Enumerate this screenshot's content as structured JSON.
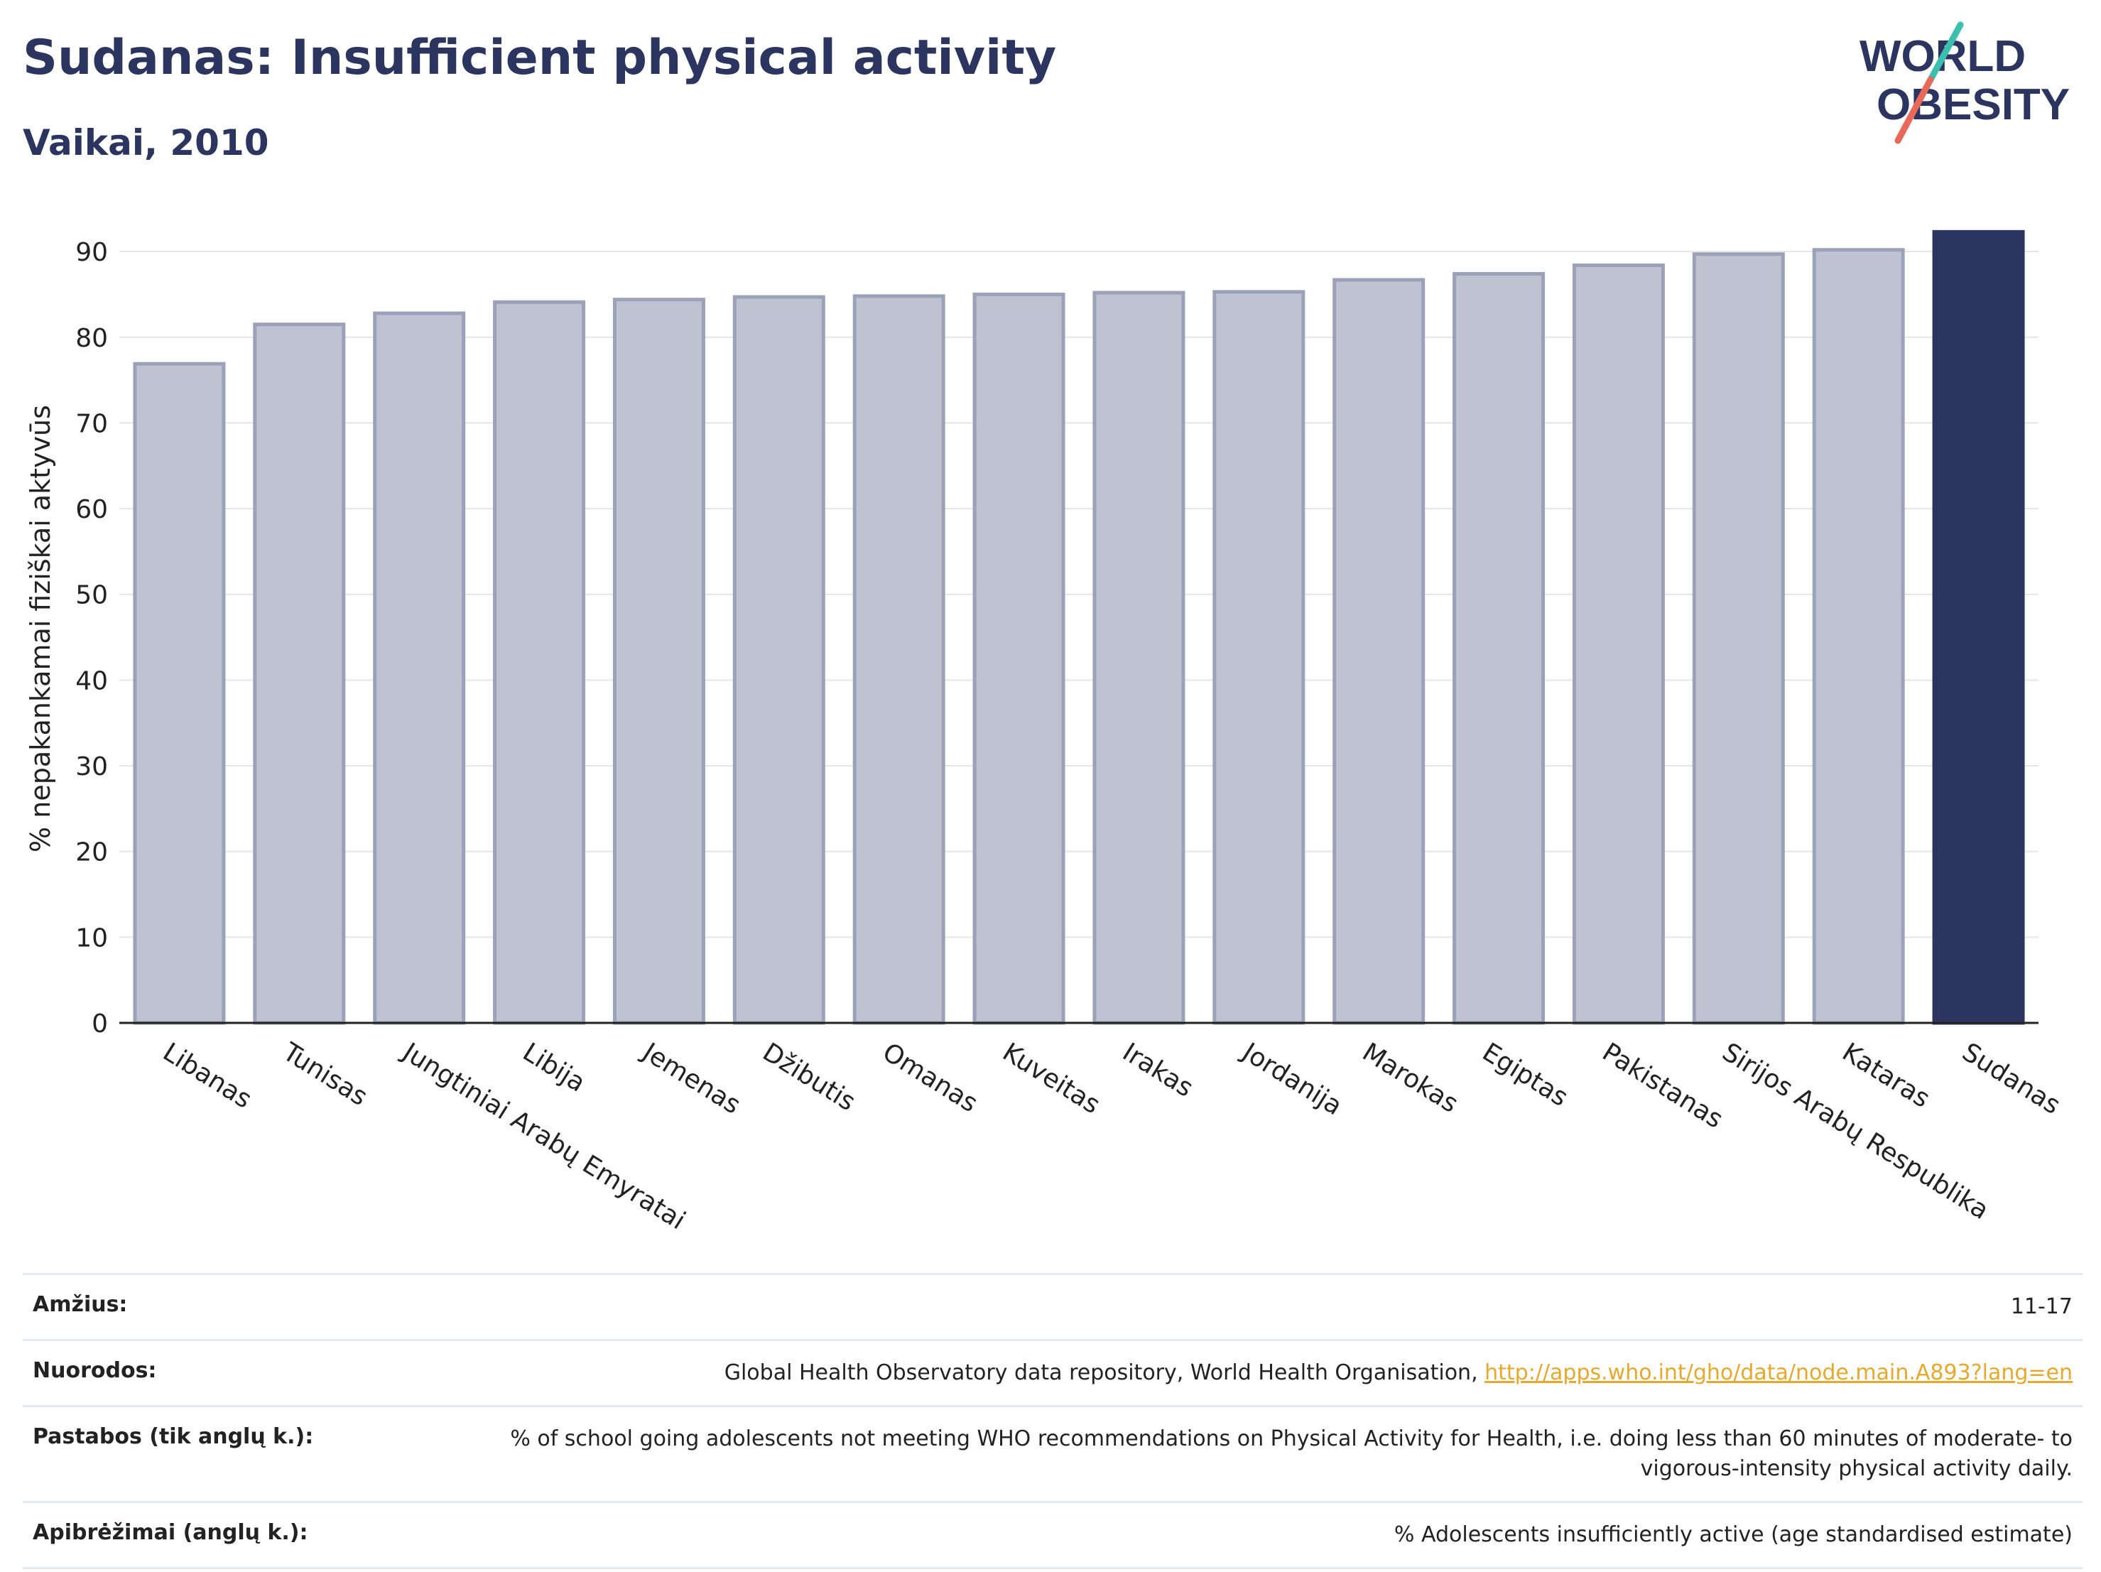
{
  "header": {
    "title": "Sudanas: Insufficient physical activity",
    "subtitle": "Vaikai, 2010"
  },
  "logo": {
    "line1": "WORLD",
    "line2": "OBESITY"
  },
  "chart_data": {
    "type": "bar",
    "ylabel": "% nepakankamai fiziškai aktyvūs",
    "ylim": [
      0,
      92
    ],
    "yticks": [
      0,
      10,
      20,
      30,
      40,
      50,
      60,
      70,
      80,
      90
    ],
    "grid": true,
    "categories": [
      "Libanas",
      "Tunisas",
      "Jungtiniai Arabų Emyratai",
      "Libija",
      "Jemenas",
      "Džibutis",
      "Omanas",
      "Kuveitas",
      "Irakas",
      "Jordanija",
      "Marokas",
      "Egiptas",
      "Pakistanas",
      "Sirijos Arabų Respublika",
      "Kataras",
      "Sudanas"
    ],
    "values": [
      76.9,
      81.5,
      82.8,
      84.1,
      84.4,
      84.7,
      84.8,
      85.0,
      85.2,
      85.3,
      86.7,
      87.4,
      88.4,
      89.7,
      90.2,
      92.3
    ],
    "highlight": "Sudanas",
    "colors": {
      "default": "#bfc2d0",
      "default_stroke": "#9ba1b8",
      "highlight": "#2c3560"
    }
  },
  "meta": {
    "rows": [
      {
        "label": "Amžius:",
        "value": "11-17"
      },
      {
        "label": "Nuorodos:",
        "value": "Global Health Observatory data repository, World Health Organisation, ",
        "link": "http://apps.who.int/gho/data/node.main.A893?lang=en"
      },
      {
        "label": "Pastabos (tik anglų k.):",
        "value": "% of school going adolescents not meeting WHO recommendations on Physical Activity for Health, i.e. doing less than 60 minutes of moderate- to vigorous-intensity physical activity daily."
      },
      {
        "label": "Apibrėžimai (anglų k.):",
        "value": "% Adolescents insufficiently active (age standardised estimate)"
      }
    ]
  }
}
